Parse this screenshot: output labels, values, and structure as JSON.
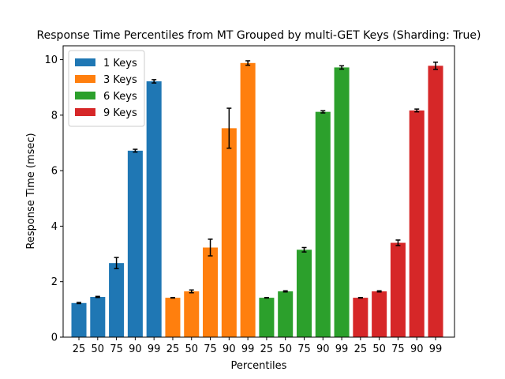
{
  "chart_data": {
    "type": "bar",
    "title": "Response Time Percentiles from MT Grouped by multi-GET Keys (Sharding: True)",
    "xlabel": "Percentiles",
    "ylabel": "Response Time (msec)",
    "ylim": [
      0,
      10.5
    ],
    "yticks": [
      0,
      2,
      4,
      6,
      8,
      10
    ],
    "categories": [
      "25",
      "50",
      "75",
      "90",
      "99"
    ],
    "grid": false,
    "legend": "top-left",
    "series": [
      {
        "name": "1 Keys",
        "color": "#1f77b4",
        "values": [
          1.23,
          1.45,
          2.67,
          6.72,
          9.22
        ],
        "errors": [
          0.02,
          0.02,
          0.2,
          0.05,
          0.06
        ]
      },
      {
        "name": "3 Keys",
        "color": "#ff7f0e",
        "values": [
          1.42,
          1.65,
          3.23,
          7.53,
          9.88
        ],
        "errors": [
          0.01,
          0.05,
          0.3,
          0.72,
          0.08
        ]
      },
      {
        "name": "6 Keys",
        "color": "#2ca02c",
        "values": [
          1.42,
          1.65,
          3.15,
          8.12,
          9.72
        ],
        "errors": [
          0.01,
          0.02,
          0.08,
          0.04,
          0.06
        ]
      },
      {
        "name": "9 Keys",
        "color": "#d62728",
        "values": [
          1.42,
          1.65,
          3.4,
          8.17,
          9.78
        ],
        "errors": [
          0.01,
          0.02,
          0.1,
          0.05,
          0.13
        ]
      }
    ]
  }
}
